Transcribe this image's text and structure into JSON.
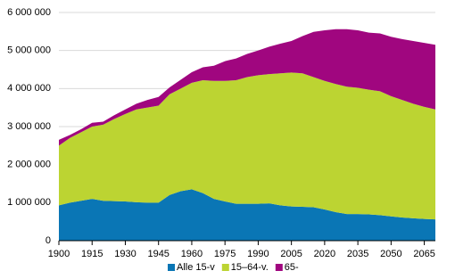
{
  "chart_data": {
    "type": "stacked_area",
    "x": [
      1900,
      1905,
      1910,
      1915,
      1920,
      1925,
      1930,
      1935,
      1940,
      1945,
      1950,
      1955,
      1960,
      1965,
      1970,
      1975,
      1980,
      1985,
      1990,
      1995,
      2000,
      2005,
      2010,
      2015,
      2020,
      2025,
      2030,
      2035,
      2040,
      2045,
      2050,
      2055,
      2060,
      2065,
      2070
    ],
    "series": [
      {
        "name": "Alle 15-v",
        "color": "#0a76b5",
        "values": [
          930000,
          1000000,
          1050000,
          1100000,
          1050000,
          1040000,
          1030000,
          1010000,
          1000000,
          1000000,
          1200000,
          1300000,
          1350000,
          1250000,
          1100000,
          1030000,
          970000,
          970000,
          970000,
          980000,
          930000,
          900000,
          890000,
          880000,
          820000,
          750000,
          700000,
          700000,
          690000,
          670000,
          640000,
          610000,
          590000,
          570000,
          560000
        ]
      },
      {
        "name": "15–64-v.",
        "color": "#bcd432",
        "values": [
          1570000,
          1700000,
          1800000,
          1900000,
          2000000,
          2160000,
          2300000,
          2440000,
          2500000,
          2550000,
          2650000,
          2700000,
          2800000,
          2970000,
          3100000,
          3170000,
          3250000,
          3330000,
          3380000,
          3400000,
          3470000,
          3520000,
          3510000,
          3420000,
          3380000,
          3370000,
          3350000,
          3320000,
          3280000,
          3260000,
          3160000,
          3090000,
          3010000,
          2950000,
          2890000
        ]
      },
      {
        "name": "65-",
        "color": "#a0067f",
        "values": [
          150000,
          80000,
          80000,
          100000,
          80000,
          100000,
          120000,
          150000,
          200000,
          230000,
          180000,
          230000,
          280000,
          340000,
          400000,
          520000,
          570000,
          610000,
          650000,
          720000,
          780000,
          830000,
          980000,
          1190000,
          1330000,
          1440000,
          1510000,
          1510000,
          1500000,
          1520000,
          1560000,
          1600000,
          1650000,
          1680000,
          1700000
        ]
      }
    ],
    "xlim": [
      1900,
      2070
    ],
    "xticks": [
      1900,
      1915,
      1930,
      1945,
      1960,
      1975,
      1990,
      2005,
      2020,
      2035,
      2050,
      2065
    ],
    "ylim": [
      0,
      6000000
    ],
    "yticks": [
      0,
      {
        "value": 1000000,
        "label": "1 000 000"
      },
      {
        "value": 2000000,
        "label": "2 000 000"
      },
      {
        "value": 3000000,
        "label": "3 000 000"
      },
      {
        "value": 4000000,
        "label": "4 000 000"
      },
      {
        "value": 5000000,
        "label": "5 000 000"
      },
      {
        "value": 6000000,
        "label": "6 000 000"
      }
    ],
    "grid": true
  }
}
